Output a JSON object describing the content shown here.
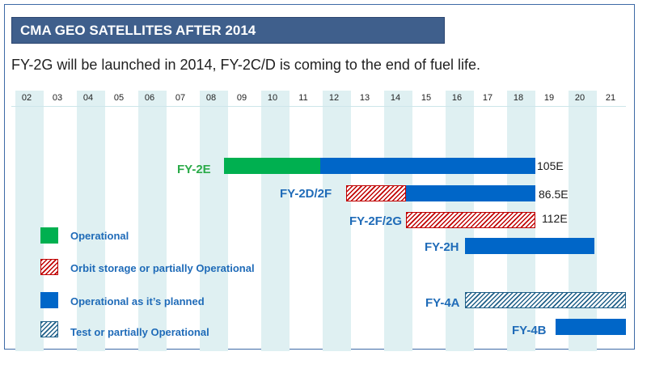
{
  "title": "CMA GEO SATELLITES AFTER 2014",
  "subtitle": "FY-2G will be launched in 2014, FY-2C/D is coming to the end of fuel life.",
  "years": [
    "02",
    "03",
    "04",
    "05",
    "06",
    "07",
    "08",
    "09",
    "10",
    "11",
    "12",
    "13",
    "14",
    "15",
    "16",
    "17",
    "18",
    "19",
    "20",
    "21"
  ],
  "colors": {
    "operational": "#00b050",
    "planned": "#0066c8",
    "storage": "#c00000",
    "test": "#1f5f88",
    "title_bg": "#3f5f8c",
    "stripe": "#dff0f2"
  },
  "satellites": [
    {
      "name": "FY-2E",
      "position": "105E"
    },
    {
      "name": "FY-2D/2F",
      "position": "86.5E"
    },
    {
      "name": "FY-2F/2G",
      "position": "112E"
    },
    {
      "name": "FY-2H",
      "position": ""
    },
    {
      "name": "FY-4A",
      "position": ""
    },
    {
      "name": "FY-4B",
      "position": ""
    }
  ],
  "legend": [
    {
      "label": "Operational",
      "style": "operational"
    },
    {
      "label": "Orbit storage or  partially Operational",
      "style": "storage"
    },
    {
      "label": "Operational as it’s planned",
      "style": "planned"
    },
    {
      "label": "Test or partially Operational",
      "style": "test"
    }
  ]
}
